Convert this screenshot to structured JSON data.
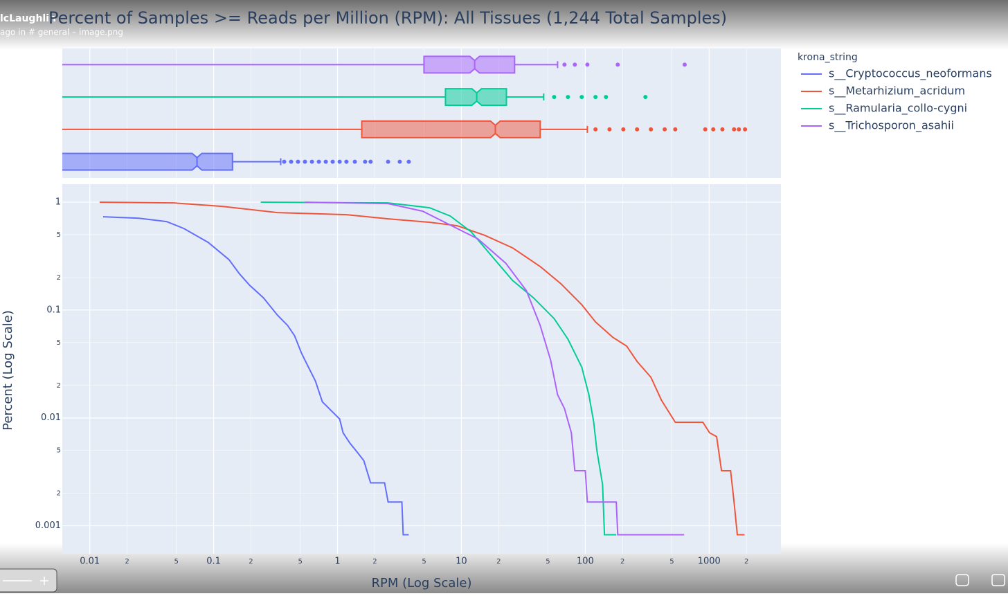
{
  "overlay": {
    "user": "lcLaughlin",
    "context": "ago in # general  – image.png"
  },
  "chart_data": [
    {
      "type": "box",
      "log_x": true,
      "xlim": [
        0.006,
        3800
      ],
      "series": [
        {
          "color": "#636efa",
          "lowerfence": 0.001,
          "q1": 0.004,
          "median": 0.0734,
          "q3": 0.142,
          "upperfence": 0.348,
          "outliers": [
            0.371,
            0.422,
            0.48,
            0.546,
            0.622,
            0.707,
            0.804,
            0.914,
            1.04,
            1.18,
            1.38,
            1.67,
            1.85,
            2.56,
            3.18,
            3.76
          ]
        },
        {
          "color": "#ef553b",
          "lowerfence": 0.001,
          "q1": 1.57,
          "median": 18.8,
          "q3": 43.3,
          "upperfence": 104,
          "outliers": [
            121,
            157,
            203,
            262,
            339,
            438,
            533,
            931,
            1080,
            1280,
            1590,
            1740,
            1950
          ]
        },
        {
          "color": "#00cc96",
          "lowerfence": 0.001,
          "q1": 7.44,
          "median": 13.3,
          "q3": 23.1,
          "upperfence": 46.2,
          "outliers": [
            56.1,
            72.5,
            93.7,
            121,
            147,
            306
          ]
        },
        {
          "color": "#ab63fa",
          "lowerfence": 0.001,
          "q1": 4.99,
          "median": 12.8,
          "q3": 26.9,
          "upperfence": 59.8,
          "outliers": [
            68.0,
            82.4,
            104,
            183,
            635
          ]
        }
      ]
    },
    {
      "type": "line",
      "title": "Percent of Samples >= Reads per Million (RPM): All Tissues (1,244 Total Samples)",
      "x_label": "RPM (Log Scale)",
      "y_label": "Percent (Log Scale)",
      "legend_title": "krona_string",
      "log_x": true,
      "log_y": true,
      "grid": true,
      "legend": "right",
      "xlim": [
        0.006,
        3800
      ],
      "ylim": [
        0.00055,
        1.47
      ],
      "xticks": [
        0.01,
        {
          "value": 0.02,
          "label": "2"
        },
        {
          "value": 0.05,
          "label": "5"
        },
        0.1,
        {
          "value": 0.2,
          "label": "2"
        },
        {
          "value": 0.5,
          "label": "5"
        },
        1,
        2,
        5,
        10,
        {
          "value": 20,
          "label": "2"
        },
        {
          "value": 50,
          "label": "5"
        },
        100,
        {
          "value": 200,
          "label": "2"
        },
        {
          "value": 500,
          "label": "5"
        },
        1000,
        {
          "value": 2000,
          "label": "2"
        }
      ],
      "yticks": [
        0.001,
        {
          "value": 0.002,
          "label": "2"
        },
        {
          "value": 0.005,
          "label": "5"
        },
        0.01,
        {
          "value": 0.02,
          "label": "2"
        },
        {
          "value": 0.05,
          "label": "5"
        },
        0.1,
        {
          "value": 0.2,
          "label": "2"
        },
        {
          "value": 0.5,
          "label": "5"
        },
        1
      ],
      "series": [
        {
          "name": "s__Cryptococcus_neoformans",
          "color": "#636efa",
          "x": [
            0.0128,
            0.0249,
            0.0417,
            0.0575,
            0.0902,
            0.133,
            0.161,
            0.195,
            0.252,
            0.327,
            0.396,
            0.451,
            0.512,
            0.582,
            0.663,
            0.754,
            0.857,
            1.04,
            1.11,
            1.26,
            1.43,
            1.63,
            1.85,
            2.4,
            2.56,
            3.31,
            3.39,
            3.76
          ],
          "values": [
            0.733,
            0.711,
            0.661,
            0.57,
            0.424,
            0.293,
            0.218,
            0.17,
            0.13,
            0.0898,
            0.0719,
            0.0576,
            0.0398,
            0.0296,
            0.022,
            0.0141,
            0.0122,
            0.00977,
            0.00727,
            0.00582,
            0.00487,
            0.00402,
            0.0025,
            0.0025,
            0.00166,
            0.00166,
            0.000826,
            0.000826
          ]
        },
        {
          "name": "s__Metarhizium_acridum",
          "color": "#ef553b",
          "x": [
            0.012,
            0.0474,
            0.117,
            0.327,
            1.18,
            2.56,
            5.53,
            9.25,
            15.5,
            25.9,
            43.3,
            63.7,
            93.7,
            121,
            167,
            216,
            262,
            339,
            412,
            533,
            891,
            1010,
            1150,
            1260,
            1490,
            1590,
            1690,
            1930
          ],
          "values": [
            1.0,
            0.985,
            0.915,
            0.801,
            0.766,
            0.701,
            0.651,
            0.605,
            0.492,
            0.377,
            0.253,
            0.175,
            0.112,
            0.0775,
            0.0559,
            0.0463,
            0.0334,
            0.0238,
            0.0146,
            0.00911,
            0.00911,
            0.00727,
            0.0067,
            0.00324,
            0.00324,
            0.00166,
            0.000826,
            0.000826
          ]
        },
        {
          "name": "s__Ramularia_collo-cygni",
          "color": "#00cc96",
          "x": [
            0.24,
            2.56,
            5.53,
            8.14,
            12.0,
            17.6,
            25.9,
            38.1,
            56.1,
            72.5,
            93.7,
            107,
            117,
            124,
            138,
            143,
            178
          ],
          "values": [
            1.0,
            0.985,
            0.888,
            0.744,
            0.53,
            0.316,
            0.188,
            0.13,
            0.0834,
            0.0537,
            0.0296,
            0.0164,
            0.00911,
            0.00501,
            0.00241,
            0.000826,
            0.000826
          ]
        },
        {
          "name": "s__Trichosporon_asahii",
          "color": "#ab63fa",
          "x": [
            0.546,
            2.56,
            4.87,
            8.14,
            13.6,
            22.8,
            33.5,
            43.3,
            52.6,
            59.8,
            68.0,
            77.3,
            82.4,
            100,
            104,
            178,
            183,
            629
          ],
          "values": [
            1.0,
            0.971,
            0.825,
            0.614,
            0.457,
            0.272,
            0.151,
            0.0719,
            0.0342,
            0.0164,
            0.0122,
            0.00727,
            0.00324,
            0.00324,
            0.00166,
            0.00166,
            0.000826,
            0.000826
          ]
        }
      ]
    }
  ]
}
